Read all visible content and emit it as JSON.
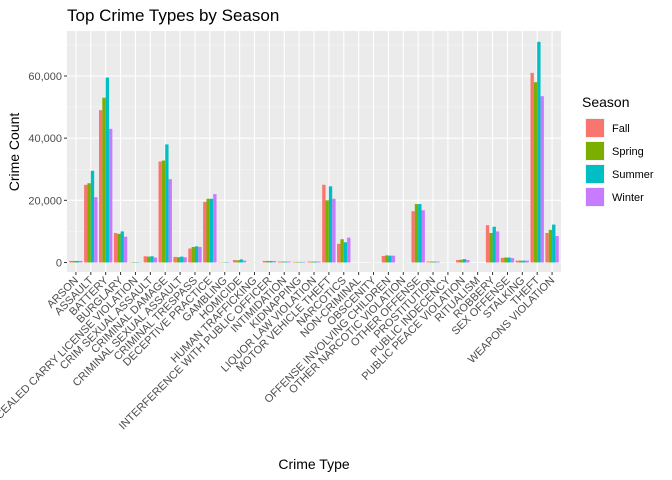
{
  "chart_data": {
    "type": "bar",
    "title": "Top Crime Types by Season",
    "xlabel": "Crime Type",
    "ylabel": "Crime Count",
    "ylim": [
      0,
      75000
    ],
    "yticks": [
      0,
      20000,
      40000,
      60000
    ],
    "ytick_labels": [
      "0",
      "20,000",
      "40,000",
      "60,000"
    ],
    "grid": true,
    "legend_position": "right",
    "legend_title": "Season",
    "categories": [
      "ARSON",
      "ASSAULT",
      "BATTERY",
      "BURGLARY",
      "CONCEALED CARRY LICENSE VIOLATION",
      "CRIM SEXUAL ASSAULT",
      "CRIMINAL DAMAGE",
      "CRIMINAL SEXUAL ASSAULT",
      "CRIMINAL TRESPASS",
      "DECEPTIVE PRACTICE",
      "GAMBLING",
      "HOMICIDE",
      "HUMAN TRAFFICKING",
      "INTERFERENCE WITH PUBLIC OFFICER",
      "INTIMIDATION",
      "KIDNAPPING",
      "LIQUOR LAW VIOLATION",
      "MOTOR VEHICLE THEFT",
      "NARCOTICS",
      "NON-CRIMINAL",
      "OBSCENITY",
      "OFFENSE INVOLVING CHILDREN",
      "OTHER NARCOTIC VIOLATION",
      "OTHER OFFENSE",
      "PROSTITUTION",
      "PUBLIC INDECENCY",
      "PUBLIC PEACE VIOLATION",
      "RITUALISM",
      "ROBBERY",
      "SEX OFFENSE",
      "STALKING",
      "THEFT",
      "WEAPONS VIOLATION"
    ],
    "series": [
      {
        "name": "Fall",
        "color": "#F8766D",
        "values": [
          500,
          25000,
          49000,
          9500,
          100,
          2000,
          32500,
          1800,
          4500,
          19500,
          100,
          800,
          50,
          500,
          300,
          200,
          300,
          25000,
          6000,
          20,
          30,
          2100,
          50,
          16500,
          300,
          30,
          800,
          10,
          12000,
          1500,
          600,
          61000,
          9500
        ]
      },
      {
        "name": "Spring",
        "color": "#7CAE00",
        "values": [
          500,
          25500,
          53000,
          9200,
          150,
          1900,
          32800,
          1700,
          5000,
          20500,
          100,
          700,
          50,
          500,
          300,
          200,
          300,
          20000,
          7500,
          20,
          40,
          2300,
          50,
          18800,
          300,
          30,
          900,
          10,
          9500,
          1600,
          600,
          58000,
          10500
        ]
      },
      {
        "name": "Summer",
        "color": "#00BFC4",
        "values": [
          500,
          29500,
          59500,
          10000,
          150,
          2000,
          38000,
          1900,
          5200,
          20500,
          150,
          1000,
          60,
          500,
          300,
          200,
          300,
          24500,
          6500,
          20,
          30,
          2200,
          50,
          18800,
          300,
          30,
          1100,
          10,
          11500,
          1600,
          600,
          71000,
          12200
        ]
      },
      {
        "name": "Winter",
        "color": "#C77CFF",
        "values": [
          500,
          21000,
          43000,
          8300,
          100,
          1600,
          26800,
          1700,
          5000,
          22000,
          100,
          600,
          50,
          500,
          300,
          200,
          300,
          20500,
          8000,
          20,
          30,
          2200,
          50,
          16800,
          300,
          30,
          800,
          10,
          10000,
          1400,
          600,
          53500,
          8500
        ]
      }
    ]
  }
}
